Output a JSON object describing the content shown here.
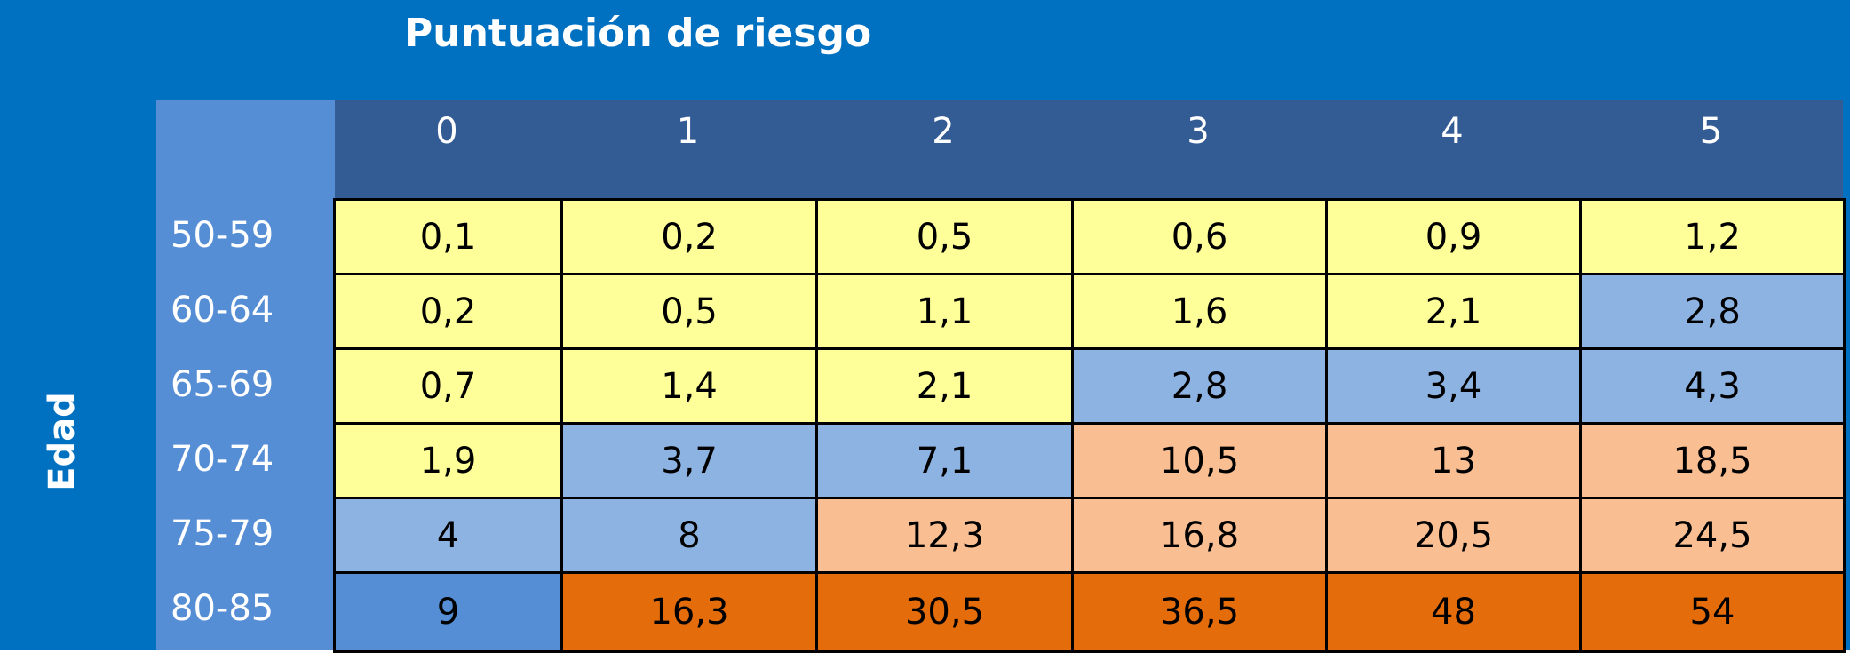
{
  "title": "Puntuación de riesgo",
  "row_axis_label": "Edad",
  "columns": [
    "0",
    "1",
    "2",
    "3",
    "4",
    "5"
  ],
  "rows": [
    {
      "label": "50-59",
      "values": [
        "0,1",
        "0,2",
        "0,5",
        "0,6",
        "0,9",
        "1,2"
      ],
      "colors": [
        "yellow",
        "yellow",
        "yellow",
        "yellow",
        "yellow",
        "yellow"
      ]
    },
    {
      "label": "60-64",
      "values": [
        "0,2",
        "0,5",
        "1,1",
        "1,6",
        "2,1",
        "2,8"
      ],
      "colors": [
        "yellow",
        "yellow",
        "yellow",
        "yellow",
        "yellow",
        "lightblue"
      ]
    },
    {
      "label": "65-69",
      "values": [
        "0,7",
        "1,4",
        "2,1",
        "2,8",
        "3,4",
        "4,3"
      ],
      "colors": [
        "yellow",
        "yellow",
        "yellow",
        "lightblue",
        "lightblue",
        "lightblue"
      ]
    },
    {
      "label": "70-74",
      "values": [
        "1,9",
        "3,7",
        "7,1",
        "10,5",
        "13",
        "18,5"
      ],
      "colors": [
        "yellow",
        "lightblue",
        "lightblue",
        "peach",
        "peach",
        "peach"
      ]
    },
    {
      "label": "75-79",
      "values": [
        "4",
        "8",
        "12,3",
        "16,8",
        "20,5",
        "24,5"
      ],
      "colors": [
        "lightblue",
        "lightblue",
        "peach",
        "peach",
        "peach",
        "peach"
      ]
    },
    {
      "label": "80-85",
      "values": [
        "9",
        "16,3",
        "30,5",
        "36,5",
        "48",
        "54"
      ],
      "colors": [
        "blue",
        "orange",
        "orange",
        "orange",
        "orange",
        "orange"
      ]
    }
  ],
  "palette": {
    "frame": "#0070c0",
    "header_band": "#345c94",
    "row_header_band": "#558ed5",
    "yellow": "#ffff99",
    "lightblue": "#8db3e2",
    "blue": "#558ed5",
    "peach": "#f9bf93",
    "orange": "#e46c0a"
  }
}
